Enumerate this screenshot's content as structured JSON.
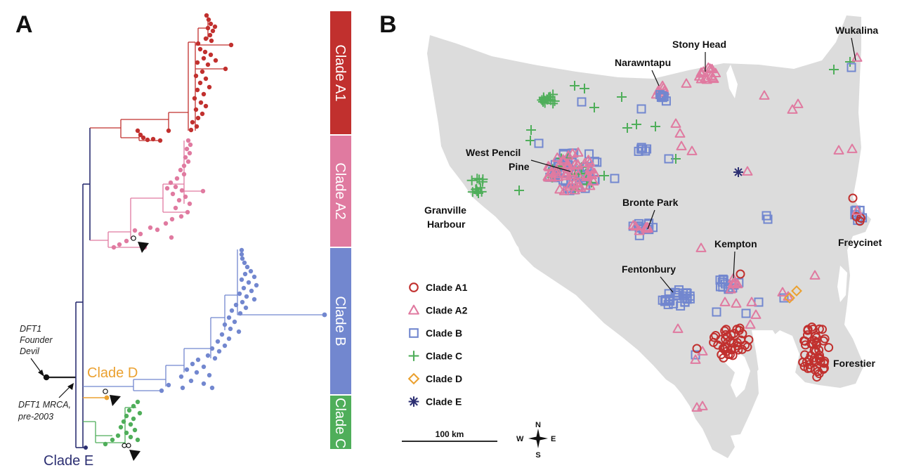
{
  "panels": {
    "a": "A",
    "b": "B"
  },
  "colors": {
    "A1": "#c1302e",
    "A2": "#e07aa0",
    "B": "#7287cf",
    "C": "#4fae5a",
    "D": "#eba130",
    "E": "#2c2f72",
    "root": "#222222",
    "land": "#dcdcdc"
  },
  "clade_bars": [
    {
      "key": "A1",
      "label": "Clade A1"
    },
    {
      "key": "A2",
      "label": "Clade A2"
    },
    {
      "key": "B",
      "label": "Clade B"
    },
    {
      "key": "C",
      "label": "Clade C"
    }
  ],
  "tree_labels": {
    "clade_d": "Clade D",
    "clade_e": "Clade E"
  },
  "annotations": {
    "founder": [
      "DFT1",
      "Founder",
      "Devil"
    ],
    "mrca": [
      "DFT1 MRCA,",
      "pre-2003"
    ]
  },
  "places": [
    {
      "key": "stony",
      "name": "Stony Head"
    },
    {
      "key": "wukalina",
      "name": "Wukalina"
    },
    {
      "key": "narawntapu",
      "name": "Narawntapu"
    },
    {
      "key": "westpencil",
      "name": [
        "West Pencil",
        "Pine"
      ]
    },
    {
      "key": "granville",
      "name": [
        "Granville",
        "Harbour"
      ]
    },
    {
      "key": "bronte",
      "name": "Bronte Park"
    },
    {
      "key": "kempton",
      "name": "Kempton"
    },
    {
      "key": "fentonbury",
      "name": "Fentonbury"
    },
    {
      "key": "freycinet",
      "name": "Freycinet"
    },
    {
      "key": "forestier",
      "name": "Forestier"
    }
  ],
  "legend": [
    {
      "key": "A1",
      "label": "Clade A1",
      "symbol": "circle"
    },
    {
      "key": "A2",
      "label": "Clade A2",
      "symbol": "triangle"
    },
    {
      "key": "B",
      "label": "Clade B",
      "symbol": "square"
    },
    {
      "key": "C",
      "label": "Clade C",
      "symbol": "plus"
    },
    {
      "key": "D",
      "label": "Clade D",
      "symbol": "diamond"
    },
    {
      "key": "E",
      "label": "Clade E",
      "symbol": "asterisk"
    }
  ],
  "scale": {
    "label": "100 km"
  },
  "compass": {
    "n": "N",
    "s": "S",
    "e": "E",
    "w": "W"
  }
}
